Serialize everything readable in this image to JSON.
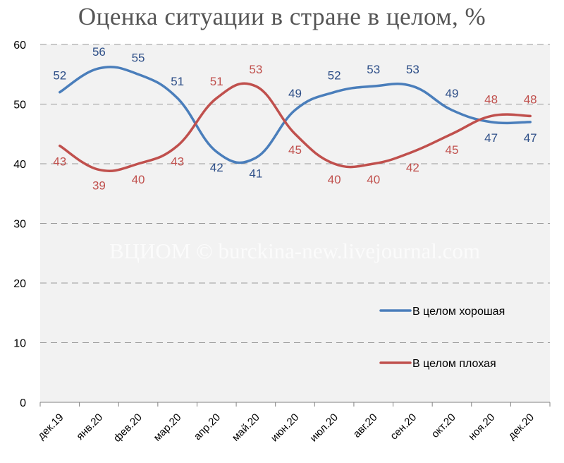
{
  "chart_data": {
    "type": "line",
    "title": "Оценка ситуации в стране в целом, %",
    "categories": [
      "дек.19",
      "янв.20",
      "фев.20",
      "мар.20",
      "апр.20",
      "май.20",
      "июн.20",
      "июл.20",
      "авг.20",
      "сен.20",
      "окт.20",
      "ноя.20",
      "дек.20"
    ],
    "series": [
      {
        "name": "В целом хорошая",
        "color": "#4a7ebb",
        "label_color": "#2e4f88",
        "values": [
          52,
          56,
          55,
          51,
          42,
          41,
          49,
          52,
          53,
          53,
          49,
          47,
          47
        ]
      },
      {
        "name": "В целом плохая",
        "color": "#c0504d",
        "label_color": "#c0504d",
        "values": [
          43,
          39,
          40,
          43,
          51,
          53,
          45,
          40,
          40,
          42,
          45,
          48,
          48
        ]
      }
    ],
    "ylim": [
      0,
      60
    ],
    "yticks": [
      0,
      10,
      20,
      30,
      40,
      50,
      60
    ],
    "grid": "horizontal dashed",
    "legend_position": "right",
    "watermark": "ВЦИОМ © burckina-new.livejournal.com"
  }
}
